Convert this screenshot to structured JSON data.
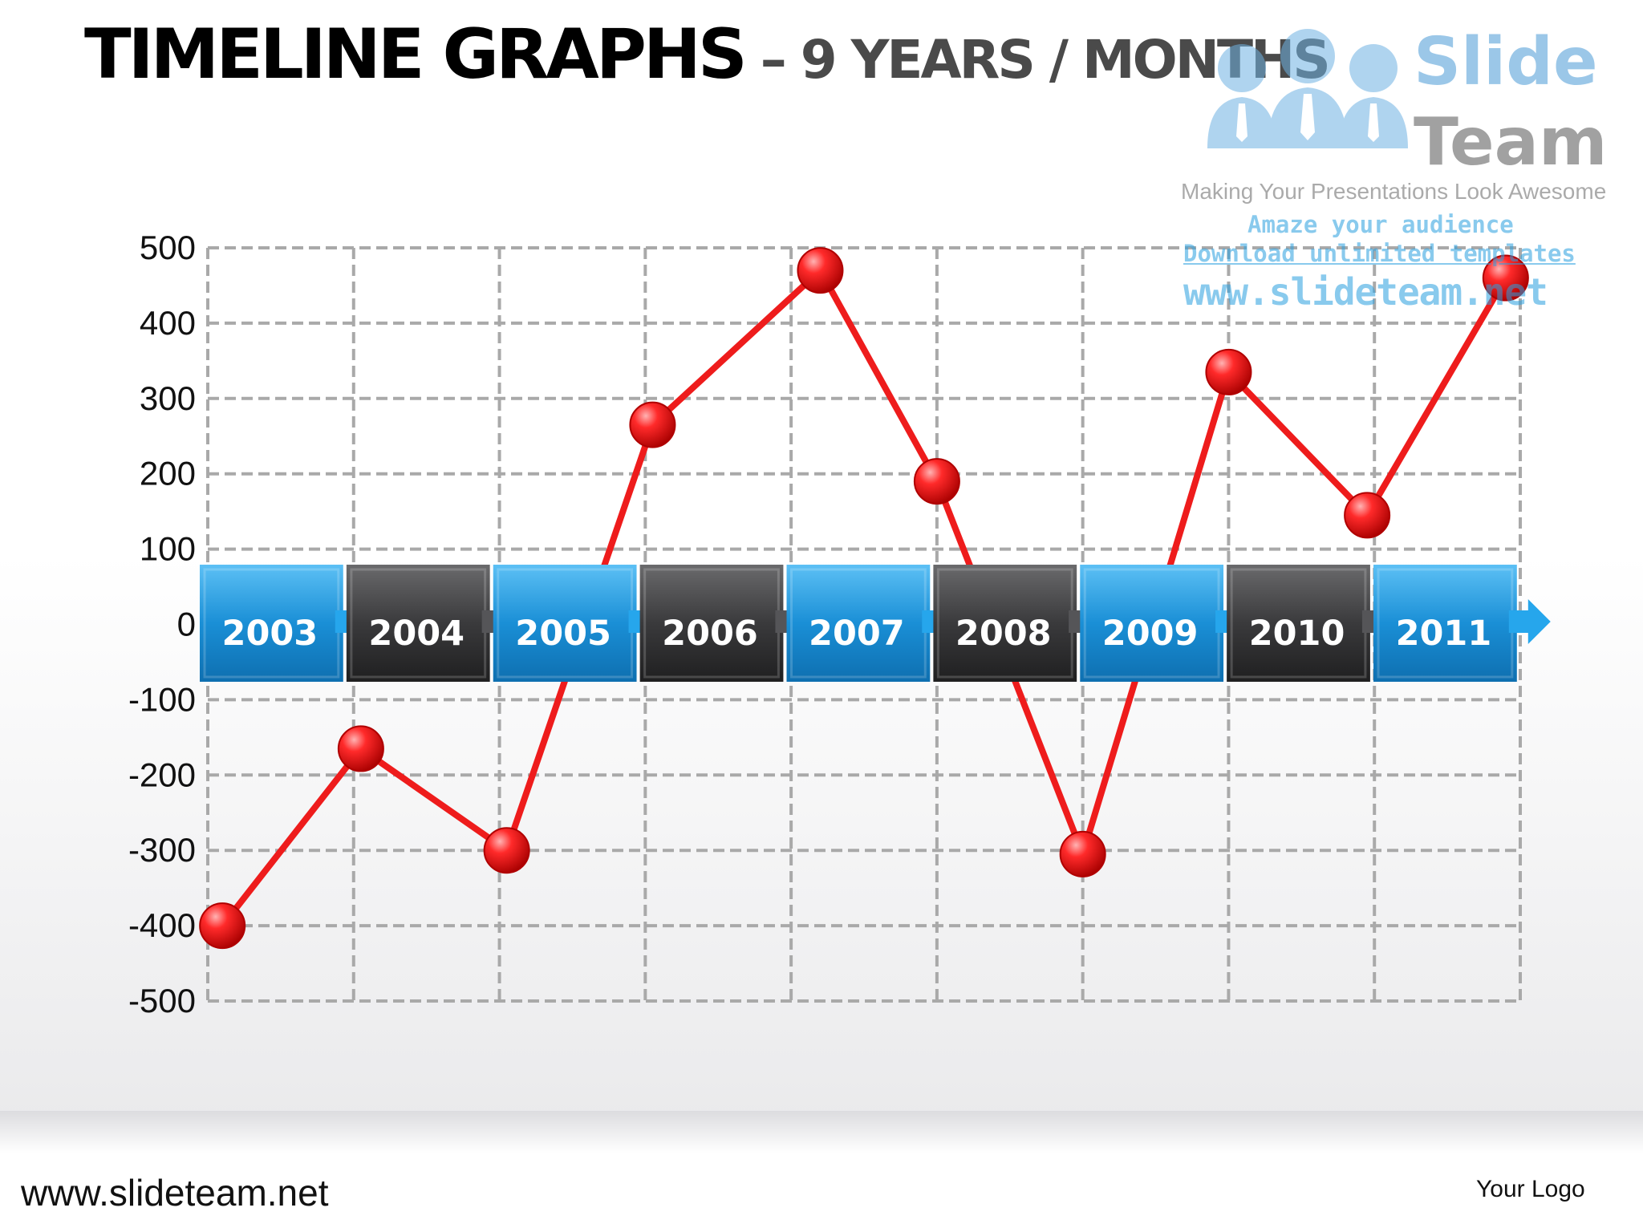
{
  "slide": {
    "title": "TIMELINE  GRAPHS",
    "subtitle": " – 9 YEARS / MONTHS",
    "footer_url": "www.slideteam.net",
    "footer_logo": "Your Logo"
  },
  "watermark": {
    "brand_word1": "Slide",
    "brand_word2": "Team",
    "tagline": "Making Your Presentations Look Awesome",
    "line1": "Amaze your audience",
    "line2": "Download unlimited templates",
    "url": "www.slideteam.net"
  },
  "colors": {
    "line": "#ee1c1c",
    "marker": "#e41010",
    "year_blue": "#1a8fd6",
    "year_dark": "#3a3a3c",
    "grid": "#a9a9a9"
  },
  "chart_data": {
    "type": "line",
    "title": "",
    "xlabel": "",
    "ylabel": "",
    "ylim": [
      -500,
      500
    ],
    "yticks": [
      500,
      400,
      300,
      200,
      100,
      0,
      -100,
      -200,
      -300,
      -400,
      -500
    ],
    "grid": true,
    "categories": [
      "2003",
      "2004",
      "2005",
      "2006",
      "2007",
      "2008",
      "2009",
      "2010",
      "2011"
    ],
    "points": [
      {
        "x": 2003.0,
        "y": -400
      },
      {
        "x": 2003.95,
        "y": -165
      },
      {
        "x": 2004.95,
        "y": -300
      },
      {
        "x": 2005.95,
        "y": 265
      },
      {
        "x": 2007.1,
        "y": 470
      },
      {
        "x": 2007.9,
        "y": 190
      },
      {
        "x": 2008.9,
        "y": -305
      },
      {
        "x": 2009.9,
        "y": 335
      },
      {
        "x": 2010.85,
        "y": 145
      },
      {
        "x": 2011.8,
        "y": 460
      }
    ]
  }
}
